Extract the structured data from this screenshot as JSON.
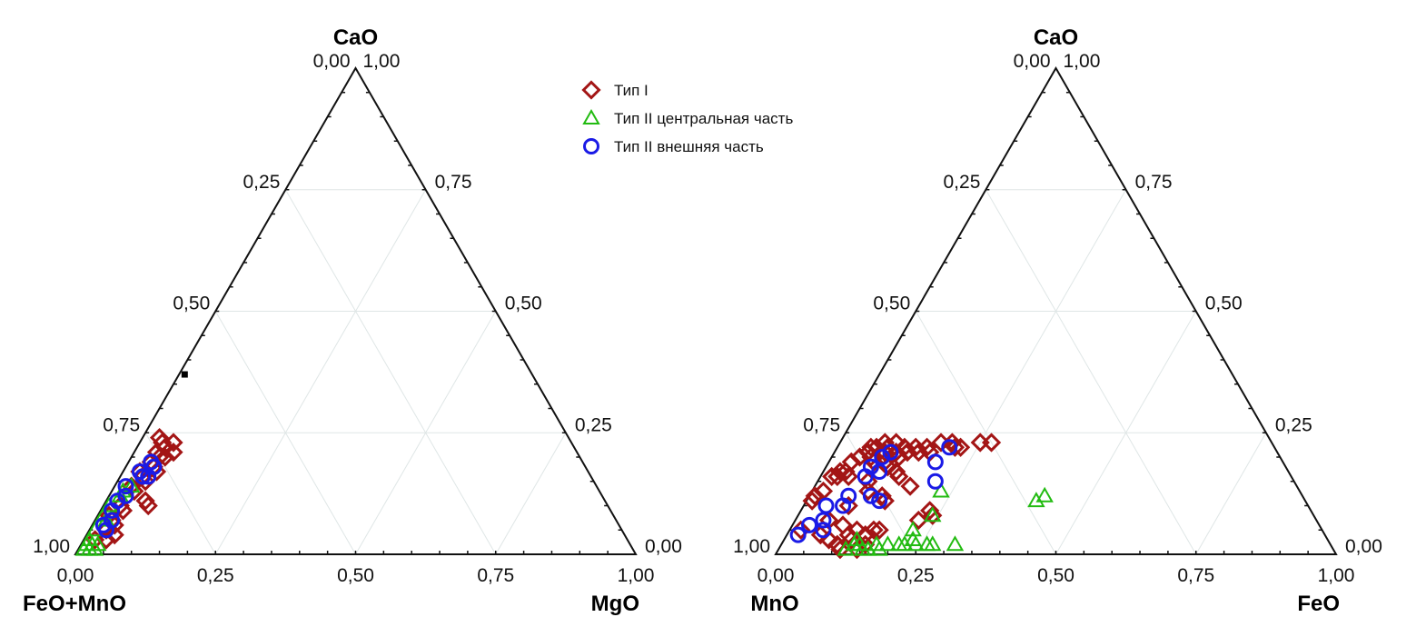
{
  "legend": [
    {
      "label": "Тип I",
      "marker": "diamond",
      "color": "#a31515"
    },
    {
      "label": "Тип II центральная часть",
      "marker": "triangle",
      "color": "#22bb11"
    },
    {
      "label": "Тип II внешняя часть",
      "marker": "circle",
      "color": "#1a1ae6"
    }
  ],
  "chart_data": [
    {
      "type": "scatter",
      "subtype": "ternary",
      "apex_label": "CaO",
      "bottom_left_label": "FeO+MnO",
      "bottom_right_label": "MgO",
      "grid": true,
      "ticks": [
        0,
        0.25,
        0.5,
        0.75,
        1
      ],
      "tick_labels": [
        "0,00",
        "0,25",
        "0,50",
        "0,75",
        "1,00"
      ],
      "point_format": "[MgO, CaO] (FeO+MnO = 1 - MgO - CaO)",
      "extra_marker": {
        "marker": "square",
        "color": "#000000",
        "point": [
          0.01,
          0.37
        ]
      },
      "series": [
        {
          "name": "Тип I",
          "points": [
            [
              0.03,
              0.24
            ],
            [
              0.04,
              0.23
            ],
            [
              0.05,
              0.22
            ],
            [
              0.06,
              0.23
            ],
            [
              0.04,
              0.21
            ],
            [
              0.05,
              0.2
            ],
            [
              0.06,
              0.2
            ],
            [
              0.07,
              0.21
            ],
            [
              0.04,
              0.19
            ],
            [
              0.05,
              0.18
            ],
            [
              0.06,
              0.17
            ],
            [
              0.03,
              0.17
            ],
            [
              0.04,
              0.16
            ],
            [
              0.05,
              0.15
            ],
            [
              0.03,
              0.14
            ],
            [
              0.04,
              0.13
            ],
            [
              0.08,
              0.1
            ],
            [
              0.07,
              0.11
            ],
            [
              0.03,
              0.1
            ],
            [
              0.04,
              0.09
            ],
            [
              0.02,
              0.08
            ],
            [
              0.03,
              0.07
            ],
            [
              0.04,
              0.06
            ],
            [
              0.03,
              0.05
            ],
            [
              0.05,
              0.04
            ],
            [
              0.04,
              0.03
            ],
            [
              0.02,
              0.03
            ]
          ]
        },
        {
          "name": "Тип II центральная часть",
          "points": [
            [
              0.03,
              0.14
            ],
            [
              0.02,
              0.13
            ],
            [
              0.02,
              0.12
            ],
            [
              0.01,
              0.1
            ],
            [
              0.01,
              0.08
            ],
            [
              0.02,
              0.07
            ],
            [
              0.01,
              0.05
            ],
            [
              0.01,
              0.03
            ],
            [
              0.02,
              0.02
            ],
            [
              0.01,
              0.02
            ],
            [
              0.03,
              0.02
            ],
            [
              0.02,
              0.01
            ],
            [
              0.01,
              0.01
            ],
            [
              0.03,
              0.01
            ]
          ]
        },
        {
          "name": "Тип II внешняя часть",
          "points": [
            [
              0.04,
              0.19
            ],
            [
              0.05,
              0.18
            ],
            [
              0.03,
              0.17
            ],
            [
              0.04,
              0.16
            ],
            [
              0.05,
              0.16
            ],
            [
              0.02,
              0.14
            ],
            [
              0.03,
              0.12
            ],
            [
              0.02,
              0.11
            ],
            [
              0.02,
              0.09
            ],
            [
              0.03,
              0.07
            ],
            [
              0.02,
              0.06
            ],
            [
              0.03,
              0.05
            ]
          ]
        }
      ]
    },
    {
      "type": "scatter",
      "subtype": "ternary",
      "apex_label": "CaO",
      "bottom_left_label": "MnO",
      "bottom_right_label": "FeO",
      "grid": true,
      "ticks": [
        0,
        0.25,
        0.5,
        0.75,
        1
      ],
      "tick_labels": [
        "0,00",
        "0,25",
        "0,50",
        "0,75",
        "1,00"
      ],
      "point_format": "[FeO, CaO] (MnO = 1 - FeO - CaO)",
      "series": [
        {
          "name": "Тип I",
          "points": [
            [
              0.02,
              0.05
            ],
            [
              0.01,
              0.12
            ],
            [
              0.01,
              0.11
            ],
            [
              0.02,
              0.13
            ],
            [
              0.02,
              0.16
            ],
            [
              0.03,
              0.16
            ],
            [
              0.03,
              0.17
            ],
            [
              0.04,
              0.17
            ],
            [
              0.05,
              0.16
            ],
            [
              0.04,
              0.19
            ],
            [
              0.05,
              0.2
            ],
            [
              0.06,
              0.21
            ],
            [
              0.07,
              0.22
            ],
            [
              0.08,
              0.23
            ],
            [
              0.06,
              0.22
            ],
            [
              0.07,
              0.2
            ],
            [
              0.08,
              0.19
            ],
            [
              0.09,
              0.21
            ],
            [
              0.09,
              0.22
            ],
            [
              0.1,
              0.23
            ],
            [
              0.11,
              0.21
            ],
            [
              0.12,
              0.22
            ],
            [
              0.1,
              0.19
            ],
            [
              0.11,
              0.18
            ],
            [
              0.12,
              0.2
            ],
            [
              0.13,
              0.21
            ],
            [
              0.14,
              0.22
            ],
            [
              0.15,
              0.21
            ],
            [
              0.16,
              0.22
            ],
            [
              0.17,
              0.21
            ],
            [
              0.18,
              0.23
            ],
            [
              0.2,
              0.23
            ],
            [
              0.21,
              0.22
            ],
            [
              0.22,
              0.22
            ],
            [
              0.25,
              0.23
            ],
            [
              0.27,
              0.23
            ],
            [
              0.13,
              0.17
            ],
            [
              0.14,
              0.16
            ],
            [
              0.17,
              0.14
            ],
            [
              0.09,
              0.15
            ],
            [
              0.1,
              0.13
            ],
            [
              0.08,
              0.1
            ],
            [
              0.09,
              0.06
            ],
            [
              0.06,
              0.07
            ],
            [
              0.06,
              0.04
            ],
            [
              0.08,
              0.03
            ],
            [
              0.11,
              0.04
            ],
            [
              0.12,
              0.05
            ],
            [
              0.12,
              0.03
            ],
            [
              0.14,
              0.04
            ],
            [
              0.15,
              0.05
            ],
            [
              0.16,
              0.05
            ],
            [
              0.15,
              0.02
            ],
            [
              0.1,
              0.02
            ],
            [
              0.11,
              0.01
            ],
            [
              0.14,
              0.01
            ],
            [
              0.23,
              0.09
            ],
            [
              0.24,
              0.08
            ],
            [
              0.22,
              0.07
            ],
            [
              0.13,
              0.12
            ],
            [
              0.14,
              0.11
            ]
          ]
        },
        {
          "name": "Тип II центральная часть",
          "points": [
            [
              0.12,
              0.01
            ],
            [
              0.13,
              0.02
            ],
            [
              0.14,
              0.02
            ],
            [
              0.15,
              0.01
            ],
            [
              0.16,
              0.01
            ],
            [
              0.17,
              0.02
            ],
            [
              0.18,
              0.01
            ],
            [
              0.19,
              0.02
            ],
            [
              0.21,
              0.02
            ],
            [
              0.22,
              0.02
            ],
            [
              0.23,
              0.03
            ],
            [
              0.24,
              0.02
            ],
            [
              0.26,
              0.02
            ],
            [
              0.27,
              0.02
            ],
            [
              0.22,
              0.05
            ],
            [
              0.24,
              0.08
            ],
            [
              0.23,
              0.13
            ],
            [
              0.31,
              0.02
            ],
            [
              0.41,
              0.11
            ],
            [
              0.42,
              0.12
            ],
            [
              0.13,
              0.03
            ]
          ]
        },
        {
          "name": "Тип II внешняя часть",
          "points": [
            [
              0.02,
              0.04
            ],
            [
              0.03,
              0.06
            ],
            [
              0.05,
              0.07
            ],
            [
              0.06,
              0.05
            ],
            [
              0.04,
              0.1
            ],
            [
              0.07,
              0.12
            ],
            [
              0.07,
              0.1
            ],
            [
              0.08,
              0.18
            ],
            [
              0.09,
              0.2
            ],
            [
              0.1,
              0.21
            ],
            [
              0.08,
              0.16
            ],
            [
              0.1,
              0.17
            ],
            [
              0.11,
              0.12
            ],
            [
              0.13,
              0.11
            ],
            [
              0.2,
              0.22
            ],
            [
              0.19,
              0.19
            ],
            [
              0.21,
              0.15
            ]
          ]
        }
      ]
    }
  ]
}
